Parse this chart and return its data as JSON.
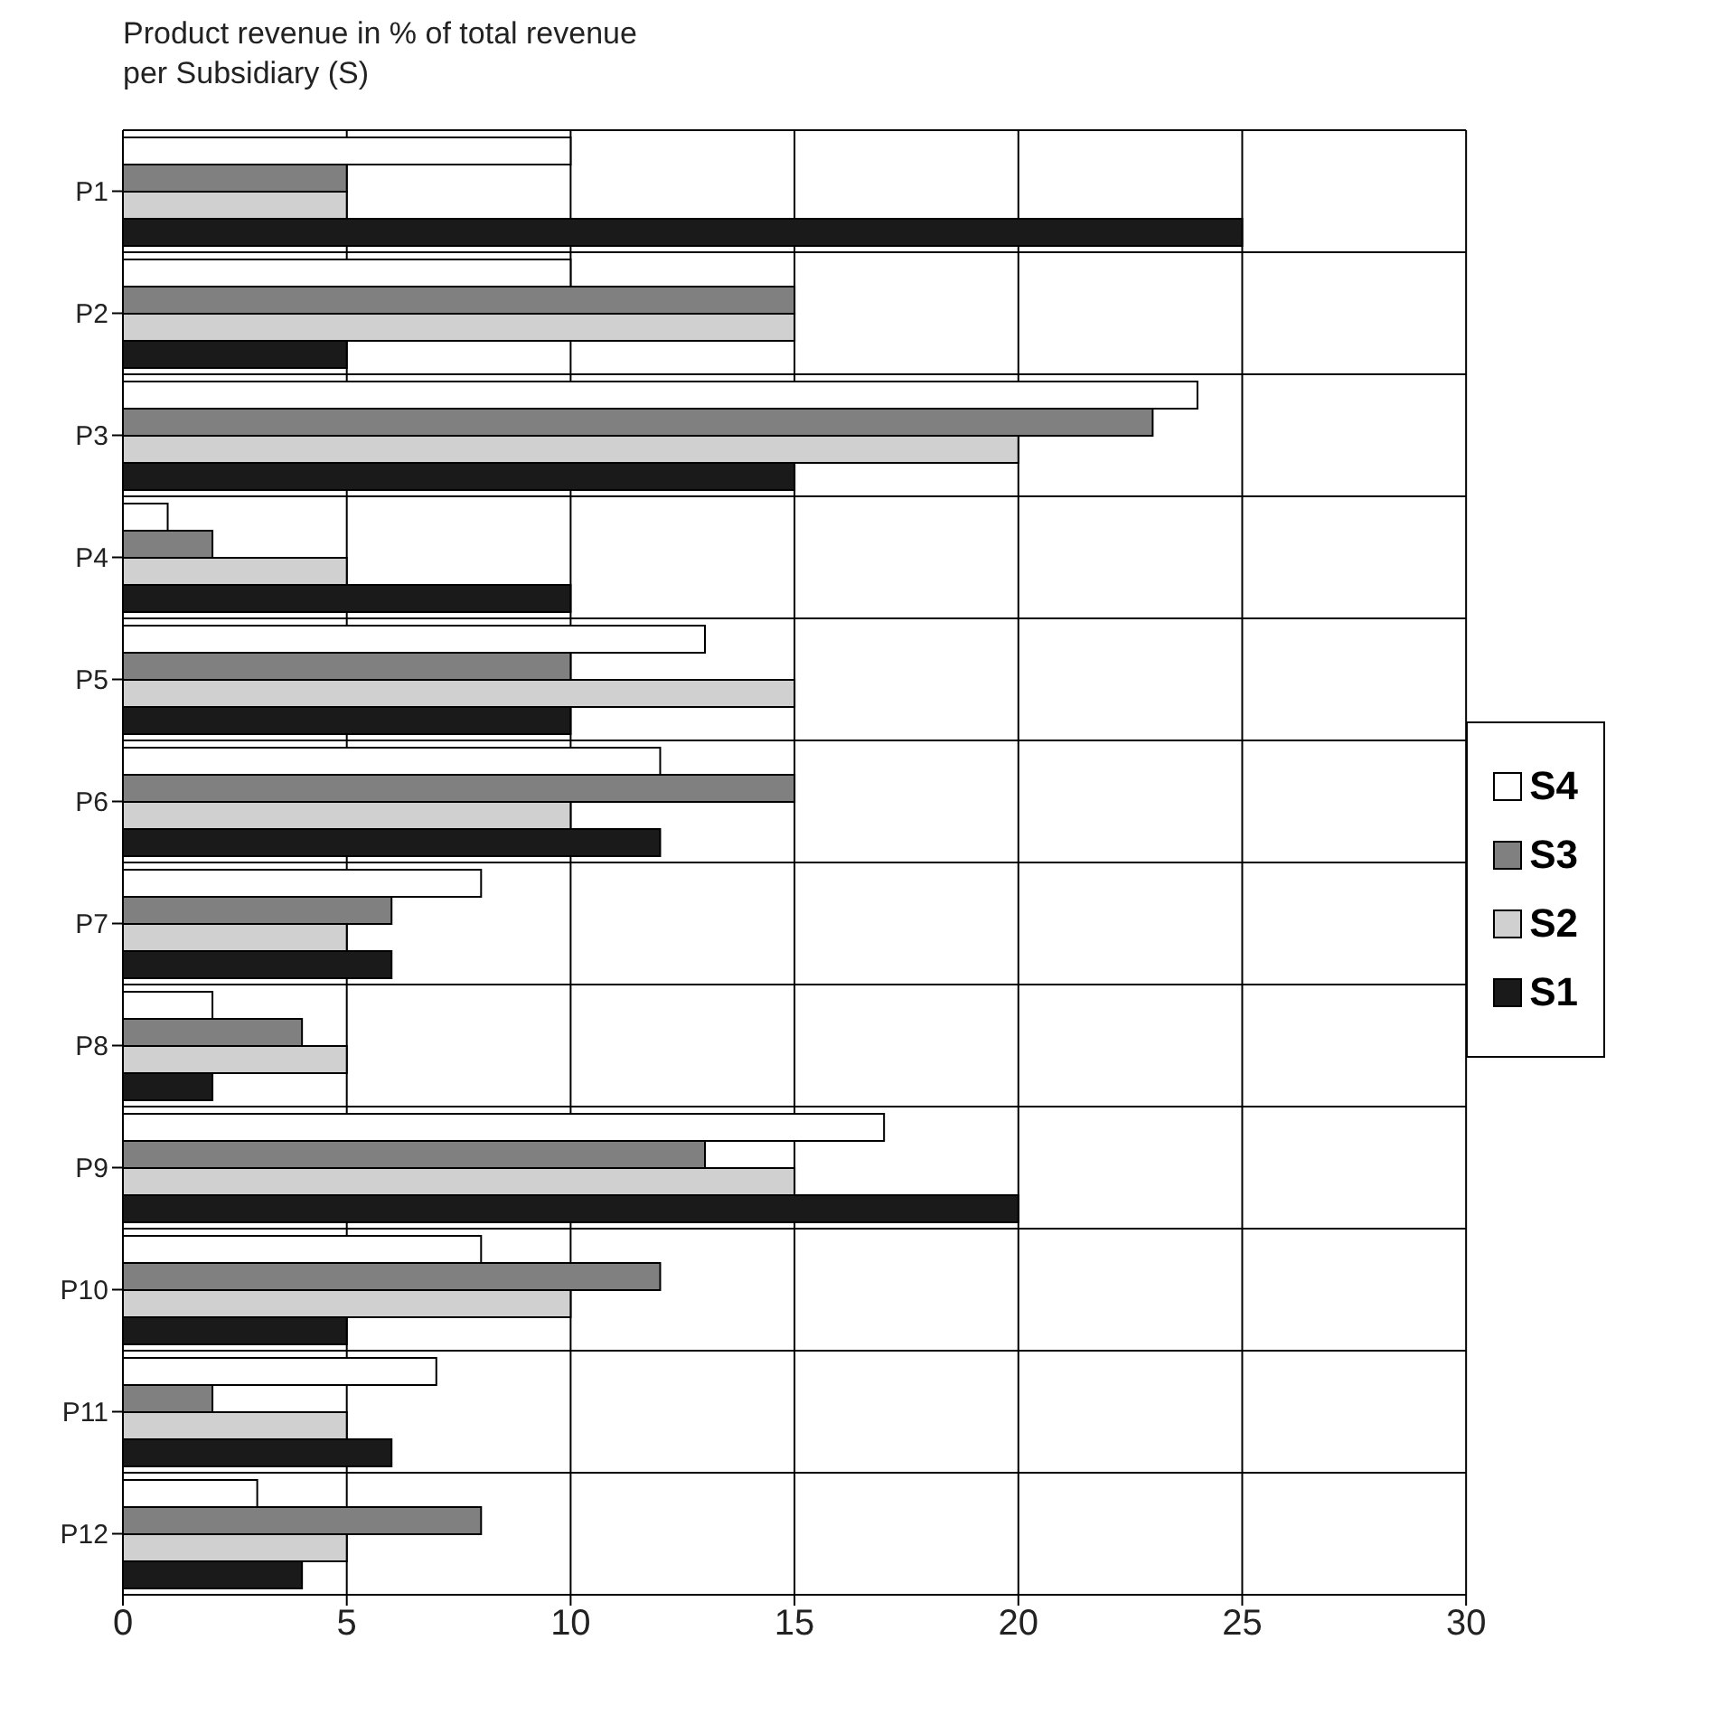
{
  "chart_data": {
    "type": "bar",
    "orientation": "horizontal",
    "title": "Product revenue in % of total revenue per Subsidiary (S)",
    "categories": [
      "P1",
      "P2",
      "P3",
      "P4",
      "P5",
      "P6",
      "P7",
      "P8",
      "P9",
      "P10",
      "P11",
      "P12"
    ],
    "series": [
      {
        "name": "S4",
        "color": "#ffffff",
        "values": [
          10,
          10,
          24,
          1,
          13,
          12,
          8,
          2,
          17,
          8,
          7,
          3
        ]
      },
      {
        "name": "S3",
        "color": "#808080",
        "values": [
          5,
          15,
          23,
          2,
          10,
          15,
          6,
          4,
          13,
          12,
          2,
          8
        ]
      },
      {
        "name": "S2",
        "color": "#d0d0d0",
        "values": [
          5,
          15,
          20,
          5,
          15,
          10,
          5,
          5,
          15,
          10,
          5,
          5
        ]
      },
      {
        "name": "S1",
        "color": "#1a1a1a",
        "values": [
          25,
          5,
          15,
          10,
          10,
          12,
          6,
          2,
          20,
          5,
          6,
          4
        ]
      }
    ],
    "xlim": [
      0,
      30
    ],
    "xticks": [
      0,
      5,
      10,
      15,
      20,
      25,
      30
    ],
    "grid": true,
    "legend": "right"
  }
}
